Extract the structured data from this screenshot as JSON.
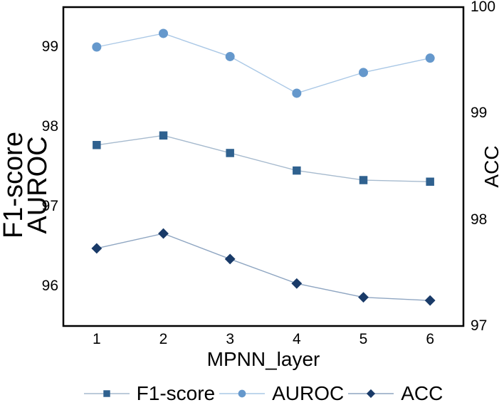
{
  "figure": {
    "background": "#ffffff",
    "border_color": "#000000",
    "text_color": "#000000"
  },
  "chart_data": {
    "type": "line",
    "x": [
      1,
      2,
      3,
      4,
      5,
      6
    ],
    "xlabel": "MPNN_layer",
    "left_axis": {
      "label_lines": [
        "F1-score",
        "AUROC"
      ],
      "ticks": [
        99,
        98,
        97,
        96
      ],
      "range": [
        95.5,
        99.5
      ]
    },
    "right_axis": {
      "label": "ACC",
      "ticks": [
        100,
        99,
        98,
        97
      ],
      "range": [
        97,
        100
      ]
    },
    "grid": false,
    "legend_position": "bottom",
    "series": [
      {
        "name": "F1-score",
        "axis": "left",
        "marker": "square",
        "marker_color": "#2f618f",
        "line_color": "#a6bace",
        "values": [
          97.77,
          97.89,
          97.67,
          97.45,
          97.33,
          97.31
        ]
      },
      {
        "name": "AUROC",
        "axis": "left",
        "marker": "circle",
        "marker_color": "#6598cc",
        "line_color": "#aac8e6",
        "values": [
          99.0,
          99.17,
          98.88,
          98.42,
          98.68,
          98.86
        ]
      },
      {
        "name": "ACC",
        "axis": "right",
        "marker": "diamond",
        "marker_color": "#193a68",
        "line_color": "#8fa6c2",
        "values": [
          97.73,
          97.87,
          97.63,
          97.4,
          97.27,
          97.24
        ]
      }
    ]
  }
}
